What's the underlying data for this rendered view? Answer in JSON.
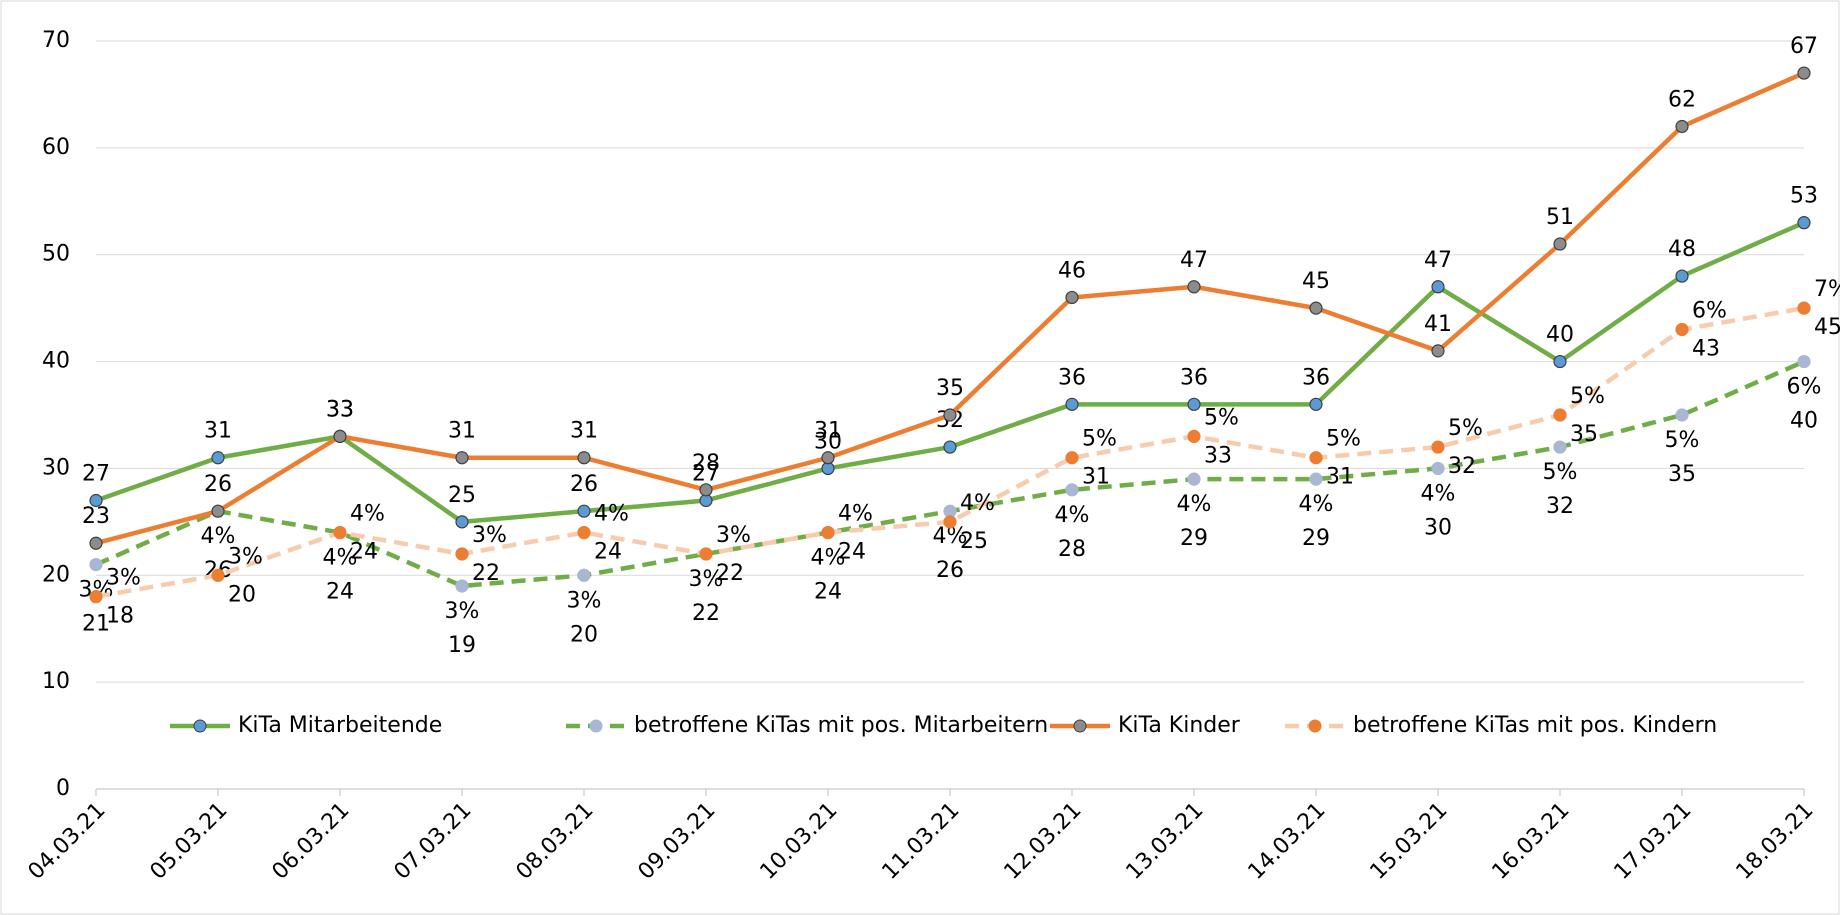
{
  "chart_data": {
    "type": "line",
    "categories": [
      "04.03.21",
      "05.03.21",
      "06.03.21",
      "07.03.21",
      "08.03.21",
      "09.03.21",
      "10.03.21",
      "11.03.21",
      "12.03.21",
      "13.03.21",
      "14.03.21",
      "15.03.21",
      "16.03.21",
      "17.03.21",
      "18.03.21"
    ],
    "ylim": [
      0,
      70
    ],
    "yticks": [
      0,
      10,
      20,
      30,
      40,
      50,
      60,
      70
    ],
    "grid": true,
    "legend": "bottom",
    "series": [
      {
        "name": "KiTa Mitarbeitende",
        "color": "#70ad47",
        "marker_color": "#5b9bd5",
        "label_color": "#538135",
        "dashed": false,
        "values": [
          27,
          31,
          33,
          25,
          26,
          27,
          30,
          32,
          36,
          36,
          36,
          47,
          40,
          48,
          53
        ]
      },
      {
        "name": "betroffene KiTas mit pos. Mitarbeitern",
        "color": "#70ad47",
        "marker_color": "#a9b7d3",
        "label_color": "#70ad47",
        "dashed": true,
        "values": [
          21,
          26,
          24,
          19,
          20,
          22,
          24,
          26,
          28,
          29,
          29,
          30,
          32,
          35,
          40
        ],
        "share_labels": [
          "3%",
          "4%",
          "4%",
          "3%",
          "3%",
          "3%",
          "4%",
          "4%",
          "4%",
          "4%",
          "4%",
          "4%",
          "5%",
          "5%",
          "6%"
        ]
      },
      {
        "name": "KiTa Kinder",
        "color": "#ed7d31",
        "marker_color": "#8c8c8c",
        "label_color": "#c55a11",
        "dashed": false,
        "values": [
          23,
          26,
          33,
          31,
          31,
          28,
          31,
          35,
          46,
          47,
          45,
          41,
          51,
          62,
          67
        ]
      },
      {
        "name": "betroffene KiTas mit pos. Kindern",
        "color": "#f8cbad",
        "marker_color": "#ed7d31",
        "label_color": "#ed7d31",
        "dashed": true,
        "values": [
          18,
          20,
          24,
          22,
          24,
          22,
          24,
          25,
          31,
          33,
          31,
          32,
          35,
          43,
          45
        ],
        "share_labels": [
          "3%",
          "3%",
          "4%",
          "3%",
          "4%",
          "3%",
          "4%",
          "4%",
          "5%",
          "5%",
          "5%",
          "5%",
          "5%",
          "6%",
          "7%"
        ]
      }
    ]
  }
}
